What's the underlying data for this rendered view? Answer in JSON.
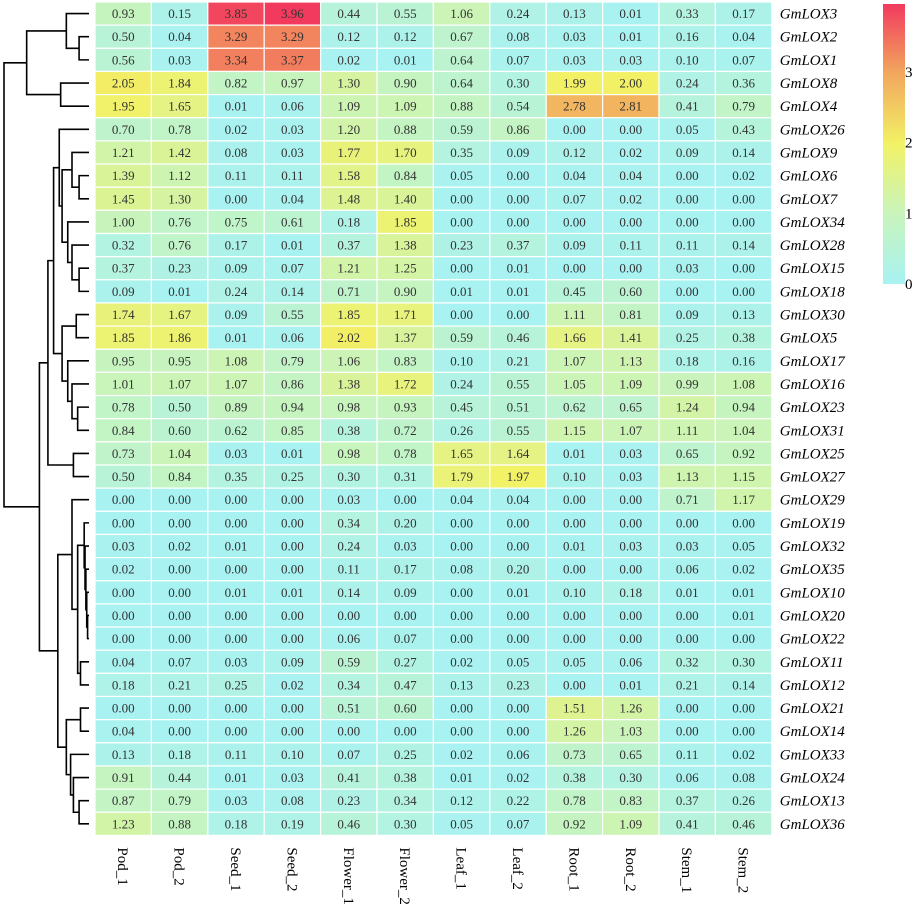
{
  "chart_data": {
    "type": "heatmap",
    "columns": [
      "Pod_1",
      "Pod_2",
      "Seed_1",
      "Seed_2",
      "Flower_1",
      "Flower_2",
      "Leaf_1",
      "Leaf_2",
      "Root_1",
      "Root_2",
      "Stem_1",
      "Stem_2"
    ],
    "rows": [
      "GmLOX3",
      "GmLOX2",
      "GmLOX1",
      "GmLOX8",
      "GmLOX4",
      "GmLOX26",
      "GmLOX9",
      "GmLOX6",
      "GmLOX7",
      "GmLOX34",
      "GmLOX28",
      "GmLOX15",
      "GmLOX18",
      "GmLOX30",
      "GmLOX5",
      "GmLOX17",
      "GmLOX16",
      "GmLOX23",
      "GmLOX31",
      "GmLOX25",
      "GmLOX27",
      "GmLOX29",
      "GmLOX19",
      "GmLOX32",
      "GmLOX35",
      "GmLOX10",
      "GmLOX20",
      "GmLOX22",
      "GmLOX11",
      "GmLOX12",
      "GmLOX21",
      "GmLOX14",
      "GmLOX33",
      "GmLOX24",
      "GmLOX13",
      "GmLOX36"
    ],
    "values": [
      [
        0.93,
        0.15,
        3.85,
        3.96,
        0.44,
        0.55,
        1.06,
        0.24,
        0.13,
        0.01,
        0.33,
        0.17
      ],
      [
        0.5,
        0.04,
        3.29,
        3.29,
        0.12,
        0.12,
        0.67,
        0.08,
        0.03,
        0.01,
        0.16,
        0.04
      ],
      [
        0.56,
        0.03,
        3.34,
        3.37,
        0.02,
        0.01,
        0.64,
        0.07,
        0.03,
        0.03,
        0.1,
        0.07
      ],
      [
        2.05,
        1.84,
        0.82,
        0.97,
        1.3,
        0.9,
        0.64,
        0.3,
        1.99,
        2.0,
        0.24,
        0.36
      ],
      [
        1.95,
        1.65,
        0.01,
        0.06,
        1.09,
        1.09,
        0.88,
        0.54,
        2.78,
        2.81,
        0.41,
        0.79
      ],
      [
        0.7,
        0.78,
        0.02,
        0.03,
        1.2,
        0.88,
        0.59,
        0.86,
        0.0,
        0.0,
        0.05,
        0.43
      ],
      [
        1.21,
        1.42,
        0.08,
        0.03,
        1.77,
        1.7,
        0.35,
        0.09,
        0.12,
        0.02,
        0.09,
        0.14
      ],
      [
        1.39,
        1.12,
        0.11,
        0.11,
        1.58,
        0.84,
        0.05,
        0.0,
        0.04,
        0.04,
        0.0,
        0.02
      ],
      [
        1.45,
        1.3,
        0.0,
        0.04,
        1.48,
        1.4,
        0.0,
        0.0,
        0.07,
        0.02,
        0.0,
        0.0
      ],
      [
        1.0,
        0.76,
        0.75,
        0.61,
        0.18,
        1.85,
        0.0,
        0.0,
        0.0,
        0.0,
        0.0,
        0.0
      ],
      [
        0.32,
        0.76,
        0.17,
        0.01,
        0.37,
        1.38,
        0.23,
        0.37,
        0.09,
        0.11,
        0.11,
        0.14
      ],
      [
        0.37,
        0.23,
        0.09,
        0.07,
        1.21,
        1.25,
        0.0,
        0.01,
        0.0,
        0.0,
        0.03,
        0.0
      ],
      [
        0.09,
        0.01,
        0.24,
        0.14,
        0.71,
        0.9,
        0.01,
        0.01,
        0.45,
        0.6,
        0.0,
        0.0
      ],
      [
        1.74,
        1.67,
        0.09,
        0.55,
        1.85,
        1.71,
        0.0,
        0.0,
        1.11,
        0.81,
        0.09,
        0.13
      ],
      [
        1.85,
        1.86,
        0.01,
        0.06,
        2.02,
        1.37,
        0.59,
        0.46,
        1.66,
        1.41,
        0.25,
        0.38
      ],
      [
        0.95,
        0.95,
        1.08,
        0.79,
        1.06,
        0.83,
        0.1,
        0.21,
        1.07,
        1.13,
        0.18,
        0.16
      ],
      [
        1.01,
        1.07,
        1.07,
        0.86,
        1.38,
        1.72,
        0.24,
        0.55,
        1.05,
        1.09,
        0.99,
        1.08
      ],
      [
        0.78,
        0.5,
        0.89,
        0.94,
        0.98,
        0.93,
        0.45,
        0.51,
        0.62,
        0.65,
        1.24,
        0.94
      ],
      [
        0.84,
        0.6,
        0.62,
        0.85,
        0.38,
        0.72,
        0.26,
        0.55,
        1.15,
        1.07,
        1.11,
        1.04
      ],
      [
        0.73,
        1.04,
        0.03,
        0.01,
        0.98,
        0.78,
        1.65,
        1.64,
        0.01,
        0.03,
        0.65,
        0.92
      ],
      [
        0.5,
        0.84,
        0.35,
        0.25,
        0.3,
        0.31,
        1.79,
        1.97,
        0.1,
        0.03,
        1.13,
        1.15
      ],
      [
        0.0,
        0.0,
        0.0,
        0.0,
        0.03,
        0.0,
        0.04,
        0.04,
        0.0,
        0.0,
        0.71,
        1.17
      ],
      [
        0.0,
        0.0,
        0.0,
        0.0,
        0.34,
        0.2,
        0.0,
        0.0,
        0.0,
        0.0,
        0.0,
        0.0
      ],
      [
        0.03,
        0.02,
        0.01,
        0.0,
        0.24,
        0.03,
        0.0,
        0.0,
        0.01,
        0.03,
        0.03,
        0.05
      ],
      [
        0.02,
        0.0,
        0.0,
        0.0,
        0.11,
        0.17,
        0.08,
        0.2,
        0.0,
        0.0,
        0.06,
        0.02
      ],
      [
        0.0,
        0.0,
        0.01,
        0.01,
        0.14,
        0.09,
        0.0,
        0.01,
        0.1,
        0.18,
        0.01,
        0.01
      ],
      [
        0.0,
        0.0,
        0.0,
        0.0,
        0.0,
        0.0,
        0.0,
        0.0,
        0.0,
        0.0,
        0.0,
        0.01
      ],
      [
        0.0,
        0.0,
        0.0,
        0.0,
        0.06,
        0.07,
        0.0,
        0.0,
        0.0,
        0.0,
        0.0,
        0.0
      ],
      [
        0.04,
        0.07,
        0.03,
        0.09,
        0.59,
        0.27,
        0.02,
        0.05,
        0.05,
        0.06,
        0.32,
        0.3
      ],
      [
        0.18,
        0.21,
        0.25,
        0.02,
        0.34,
        0.47,
        0.13,
        0.23,
        0.0,
        0.01,
        0.21,
        0.14
      ],
      [
        0.0,
        0.0,
        0.0,
        0.0,
        0.51,
        0.6,
        0.0,
        0.0,
        1.51,
        1.26,
        0.0,
        0.0
      ],
      [
        0.04,
        0.0,
        0.0,
        0.0,
        0.0,
        0.0,
        0.0,
        0.0,
        1.26,
        1.03,
        0.0,
        0.0
      ],
      [
        0.13,
        0.18,
        0.11,
        0.1,
        0.07,
        0.25,
        0.02,
        0.06,
        0.73,
        0.65,
        0.11,
        0.02
      ],
      [
        0.91,
        0.44,
        0.01,
        0.03,
        0.41,
        0.38,
        0.01,
        0.02,
        0.38,
        0.3,
        0.06,
        0.08
      ],
      [
        0.87,
        0.79,
        0.03,
        0.08,
        0.23,
        0.34,
        0.12,
        0.22,
        0.78,
        0.83,
        0.37,
        0.26
      ],
      [
        1.23,
        0.88,
        0.18,
        0.19,
        0.46,
        0.3,
        0.05,
        0.07,
        0.92,
        1.09,
        0.41,
        0.46
      ]
    ],
    "legend": {
      "ticks": [
        0,
        1,
        2,
        3
      ],
      "range": [
        0,
        3.96
      ],
      "colors": [
        "#a8f2f2",
        "#c8f4bc",
        "#f2f266",
        "#f2a85e",
        "#f23a5e"
      ],
      "placement": "right"
    },
    "cell_border_color": "#ffffff",
    "dendrogram": "rows"
  }
}
